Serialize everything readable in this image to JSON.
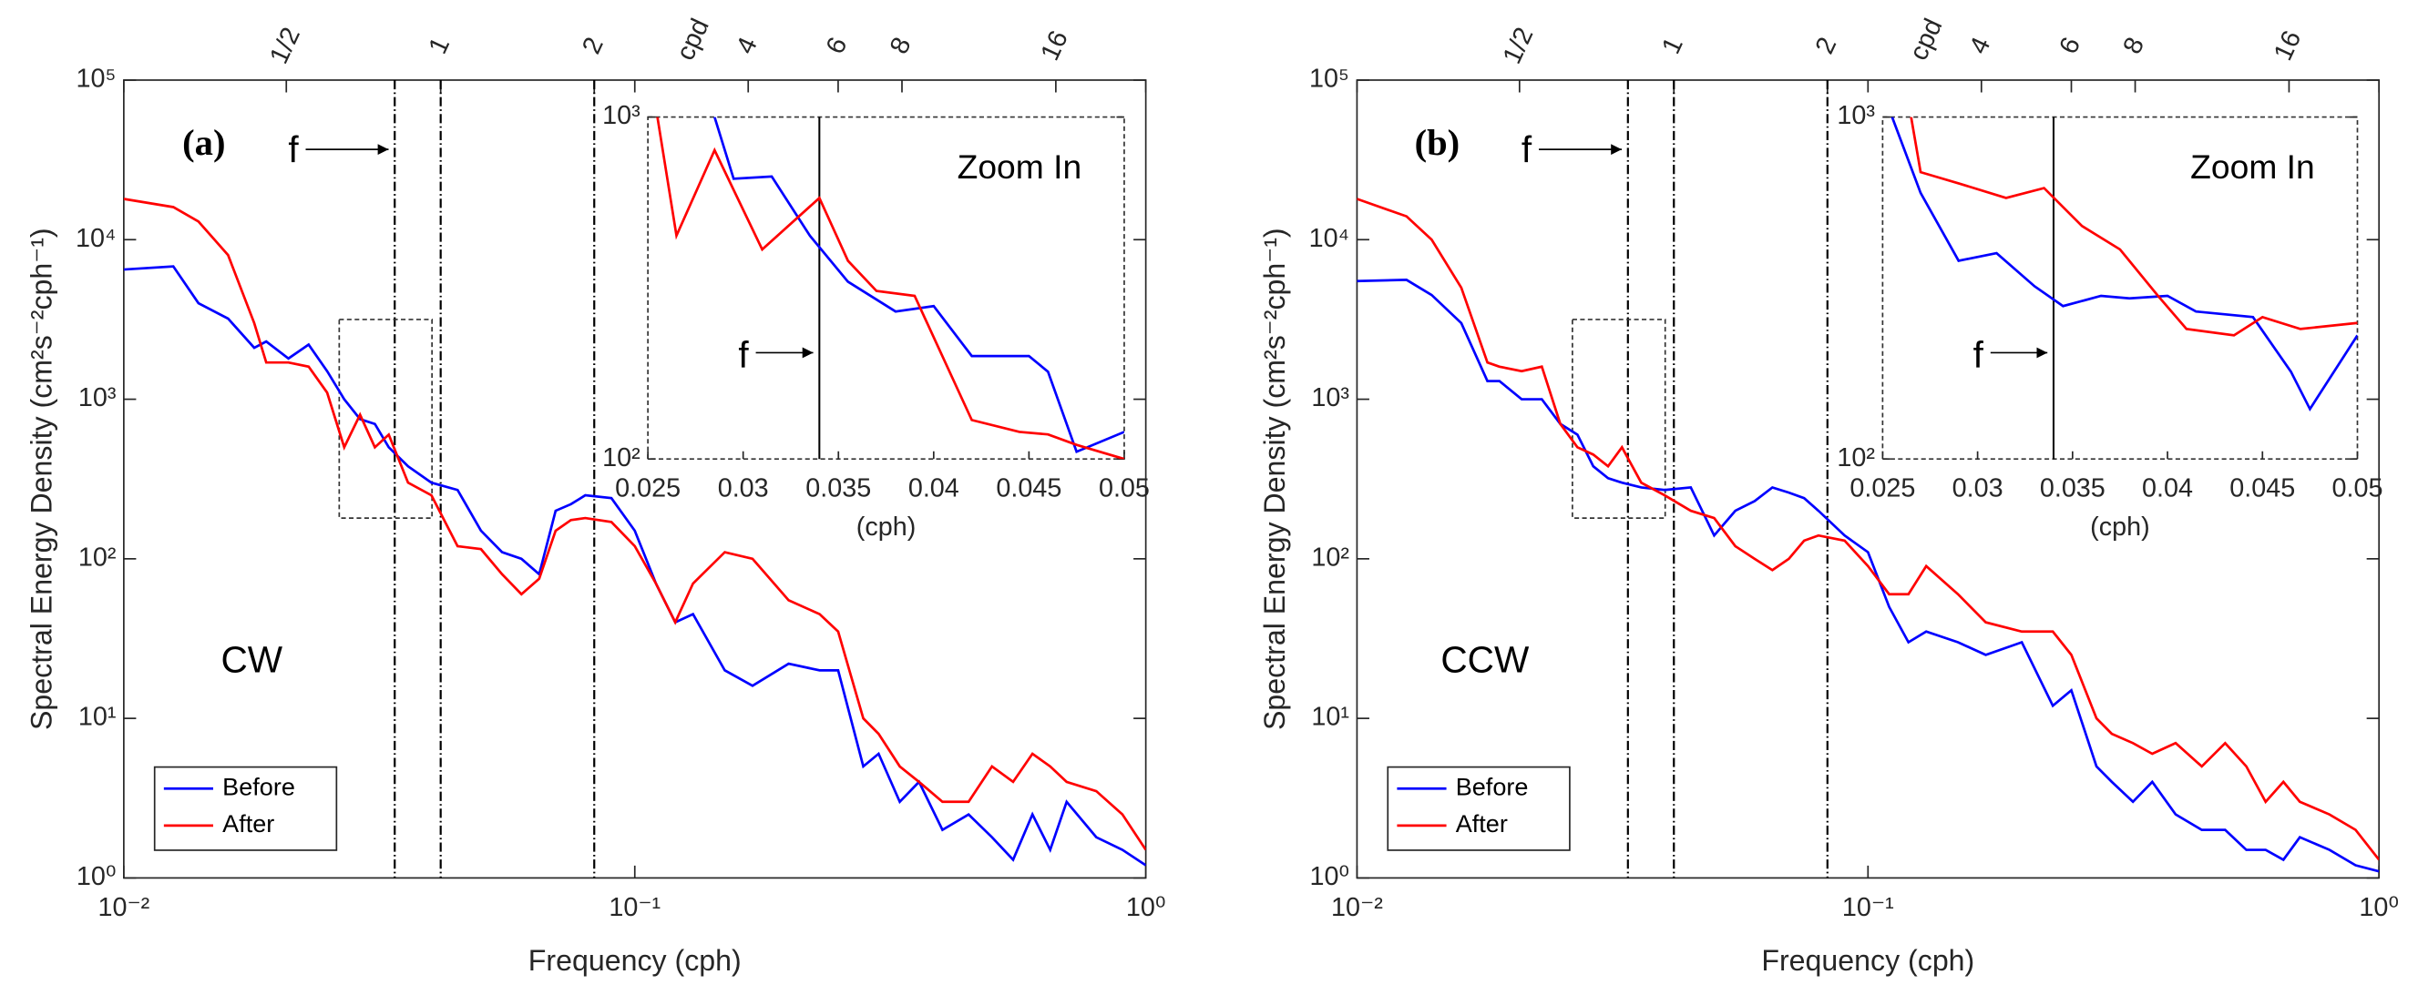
{
  "chart_data": [
    {
      "type": "line",
      "label": "(a)",
      "annotation": "CW",
      "f_label": "f",
      "xlabel": "Frequency (cph)",
      "ylabel": "Spectral Energy Density (cm²s⁻²cph⁻¹)",
      "xscale": "log",
      "yscale": "log",
      "xlim": [
        0.01,
        1
      ],
      "ylim": [
        1,
        100000
      ],
      "xticks": [
        {
          "value": 0.01,
          "label": "10⁻²"
        },
        {
          "value": 0.1,
          "label": "10⁻¹"
        },
        {
          "value": 1,
          "label": "10⁰"
        }
      ],
      "yticks": [
        {
          "value": 1,
          "label": "10⁰"
        },
        {
          "value": 10,
          "label": "10¹"
        },
        {
          "value": 100,
          "label": "10²"
        },
        {
          "value": 1000,
          "label": "10³"
        },
        {
          "value": 10000,
          "label": "10⁴"
        },
        {
          "value": 100000,
          "label": "10⁵"
        }
      ],
      "top_ticks": [
        {
          "value": 0.0208,
          "label": "1/2"
        },
        {
          "value": 0.0417,
          "label": "1"
        },
        {
          "value": 0.0833,
          "label": "2"
        },
        {
          "value": 0.1667,
          "label": "4"
        },
        {
          "value": 0.25,
          "label": "6"
        },
        {
          "value": 0.3333,
          "label": "8"
        },
        {
          "value": 0.6667,
          "label": "16"
        }
      ],
      "top_unit": "cpd",
      "vlines": [
        0.0339,
        0.0417,
        0.0833
      ],
      "zoom_box": {
        "x": [
          0.0264,
          0.0401
        ],
        "y": [
          180,
          3160
        ]
      },
      "legend": "lower left",
      "x": [
        0.01,
        0.0125,
        0.014,
        0.016,
        0.018,
        0.019,
        0.021,
        0.023,
        0.025,
        0.027,
        0.029,
        0.031,
        0.033,
        0.036,
        0.04,
        0.045,
        0.05,
        0.055,
        0.06,
        0.065,
        0.07,
        0.075,
        0.08,
        0.09,
        0.1,
        0.11,
        0.12,
        0.13,
        0.15,
        0.17,
        0.2,
        0.23,
        0.25,
        0.28,
        0.3,
        0.33,
        0.36,
        0.4,
        0.45,
        0.5,
        0.55,
        0.6,
        0.65,
        0.7,
        0.8,
        0.9,
        1
      ],
      "series": [
        {
          "name": "Before",
          "color": "#0000ff",
          "values": [
            6500,
            6800,
            4000,
            3200,
            2100,
            2300,
            1800,
            2200,
            1500,
            1000,
            750,
            700,
            500,
            380,
            300,
            270,
            150,
            110,
            100,
            80,
            200,
            220,
            250,
            240,
            150,
            70,
            40,
            45,
            20,
            16,
            22,
            20,
            20,
            5,
            6,
            3,
            4,
            2,
            2.5,
            1.8,
            1.3,
            2.5,
            1.5,
            3,
            1.8,
            1.5,
            1.2
          ]
        },
        {
          "name": "After",
          "color": "#ff0000",
          "values": [
            18000,
            16000,
            13000,
            8000,
            3000,
            1700,
            1700,
            1600,
            1100,
            500,
            800,
            500,
            600,
            300,
            250,
            120,
            115,
            80,
            60,
            75,
            150,
            175,
            180,
            170,
            120,
            70,
            40,
            70,
            110,
            100,
            55,
            45,
            35,
            10,
            8,
            5,
            4,
            3,
            3,
            5,
            4,
            6,
            5,
            4,
            3.5,
            2.5,
            1.5
          ]
        }
      ],
      "inset": {
        "type": "line",
        "title": "Zoom In",
        "f_label": "f",
        "xlabel": "(cph)",
        "xscale": "linear",
        "yscale": "log",
        "xlim": [
          0.025,
          0.05
        ],
        "ylim": [
          100,
          1000
        ],
        "xticks": [
          0.025,
          0.03,
          0.035,
          0.04,
          0.045,
          0.05
        ],
        "yticks": [
          {
            "value": 100,
            "label": "10²"
          },
          {
            "value": 1000,
            "label": "10³"
          }
        ],
        "vline": 0.034,
        "series": [
          {
            "color": "#0000ff",
            "x": [
              0.0285,
              0.0295,
              0.0315,
              0.0335,
              0.0355,
              0.038,
              0.04,
              0.042,
              0.045,
              0.046,
              0.0475,
              0.05
            ],
            "values": [
              1000,
              660,
              670,
              450,
              330,
              270,
              280,
              200,
              200,
              180,
              105,
              120
            ]
          },
          {
            "color": "#ff0000",
            "x": [
              0.0255,
              0.0265,
              0.0285,
              0.031,
              0.034,
              0.0355,
              0.037,
              0.039,
              0.042,
              0.0445,
              0.046,
              0.0475,
              0.05
            ],
            "values": [
              1000,
              450,
              800,
              410,
              580,
              380,
              310,
              300,
              130,
              120,
              118,
              110,
              100
            ]
          }
        ]
      }
    },
    {
      "type": "line",
      "label": "(b)",
      "annotation": "CCW",
      "f_label": "f",
      "xlabel": "Frequency (cph)",
      "ylabel": "Spectral Energy Density (cm²s⁻²cph⁻¹)",
      "xscale": "log",
      "yscale": "log",
      "xlim": [
        0.01,
        1
      ],
      "ylim": [
        1,
        100000
      ],
      "xticks": [
        {
          "value": 0.01,
          "label": "10⁻²"
        },
        {
          "value": 0.1,
          "label": "10⁻¹"
        },
        {
          "value": 1,
          "label": "10⁰"
        }
      ],
      "yticks": [
        {
          "value": 1,
          "label": "10⁰"
        },
        {
          "value": 10,
          "label": "10¹"
        },
        {
          "value": 100,
          "label": "10²"
        },
        {
          "value": 1000,
          "label": "10³"
        },
        {
          "value": 10000,
          "label": "10⁴"
        },
        {
          "value": 100000,
          "label": "10⁵"
        }
      ],
      "top_ticks": [
        {
          "value": 0.0208,
          "label": "1/2"
        },
        {
          "value": 0.0417,
          "label": "1"
        },
        {
          "value": 0.0833,
          "label": "2"
        },
        {
          "value": 0.1667,
          "label": "4"
        },
        {
          "value": 0.25,
          "label": "6"
        },
        {
          "value": 0.3333,
          "label": "8"
        },
        {
          "value": 0.6667,
          "label": "16"
        }
      ],
      "top_unit": "cpd",
      "vlines": [
        0.0339,
        0.0417,
        0.0833
      ],
      "zoom_box": {
        "x": [
          0.0264,
          0.0401
        ],
        "y": [
          180,
          3160
        ]
      },
      "legend": "lower left",
      "x": [
        0.01,
        0.0125,
        0.014,
        0.016,
        0.018,
        0.019,
        0.021,
        0.023,
        0.025,
        0.027,
        0.029,
        0.031,
        0.033,
        0.036,
        0.04,
        0.045,
        0.05,
        0.055,
        0.06,
        0.065,
        0.07,
        0.075,
        0.08,
        0.09,
        0.1,
        0.11,
        0.12,
        0.13,
        0.15,
        0.17,
        0.2,
        0.23,
        0.25,
        0.28,
        0.3,
        0.33,
        0.36,
        0.4,
        0.45,
        0.5,
        0.55,
        0.6,
        0.65,
        0.7,
        0.8,
        0.9,
        1
      ],
      "series": [
        {
          "name": "Before",
          "color": "#0000ff",
          "values": [
            5500,
            5600,
            4500,
            3000,
            1300,
            1300,
            1000,
            1000,
            700,
            600,
            380,
            320,
            300,
            280,
            270,
            280,
            140,
            200,
            230,
            280,
            260,
            240,
            200,
            140,
            110,
            50,
            30,
            35,
            30,
            25,
            30,
            12,
            15,
            5,
            4,
            3,
            4,
            2.5,
            2,
            2,
            1.5,
            1.5,
            1.3,
            1.8,
            1.5,
            1.2,
            1.1
          ]
        },
        {
          "name": "After",
          "color": "#ff0000",
          "values": [
            18000,
            14000,
            10000,
            5000,
            1700,
            1600,
            1500,
            1600,
            700,
            500,
            450,
            380,
            500,
            300,
            250,
            200,
            180,
            120,
            100,
            85,
            100,
            130,
            140,
            130,
            90,
            60,
            60,
            90,
            60,
            40,
            35,
            35,
            25,
            10,
            8,
            7,
            6,
            7,
            5,
            7,
            5,
            3,
            4,
            3,
            2.5,
            2,
            1.3
          ]
        }
      ],
      "inset": {
        "type": "line",
        "title": "Zoom In",
        "f_label": "f",
        "xlabel": "(cph)",
        "xscale": "linear",
        "yscale": "log",
        "xlim": [
          0.025,
          0.05
        ],
        "ylim": [
          100,
          1000
        ],
        "xticks": [
          0.025,
          0.03,
          0.035,
          0.04,
          0.045,
          0.05
        ],
        "yticks": [
          {
            "value": 100,
            "label": "10²"
          },
          {
            "value": 1000,
            "label": "10³"
          }
        ],
        "vline": 0.034,
        "series": [
          {
            "color": "#0000ff",
            "x": [
              0.0255,
              0.027,
              0.029,
              0.031,
              0.033,
              0.0345,
              0.0365,
              0.038,
              0.04,
              0.0415,
              0.0445,
              0.0465,
              0.0475,
              0.05
            ],
            "values": [
              1000,
              600,
              380,
              400,
              320,
              280,
              300,
              295,
              300,
              270,
              260,
              180,
              140,
              230
            ]
          },
          {
            "color": "#ff0000",
            "x": [
              0.0265,
              0.027,
              0.029,
              0.0315,
              0.0335,
              0.0355,
              0.0375,
              0.0395,
              0.041,
              0.0435,
              0.045,
              0.047,
              0.05
            ],
            "values": [
              1000,
              690,
              640,
              580,
              620,
              480,
              410,
              300,
              240,
              230,
              260,
              240,
              250
            ]
          }
        ]
      }
    }
  ]
}
